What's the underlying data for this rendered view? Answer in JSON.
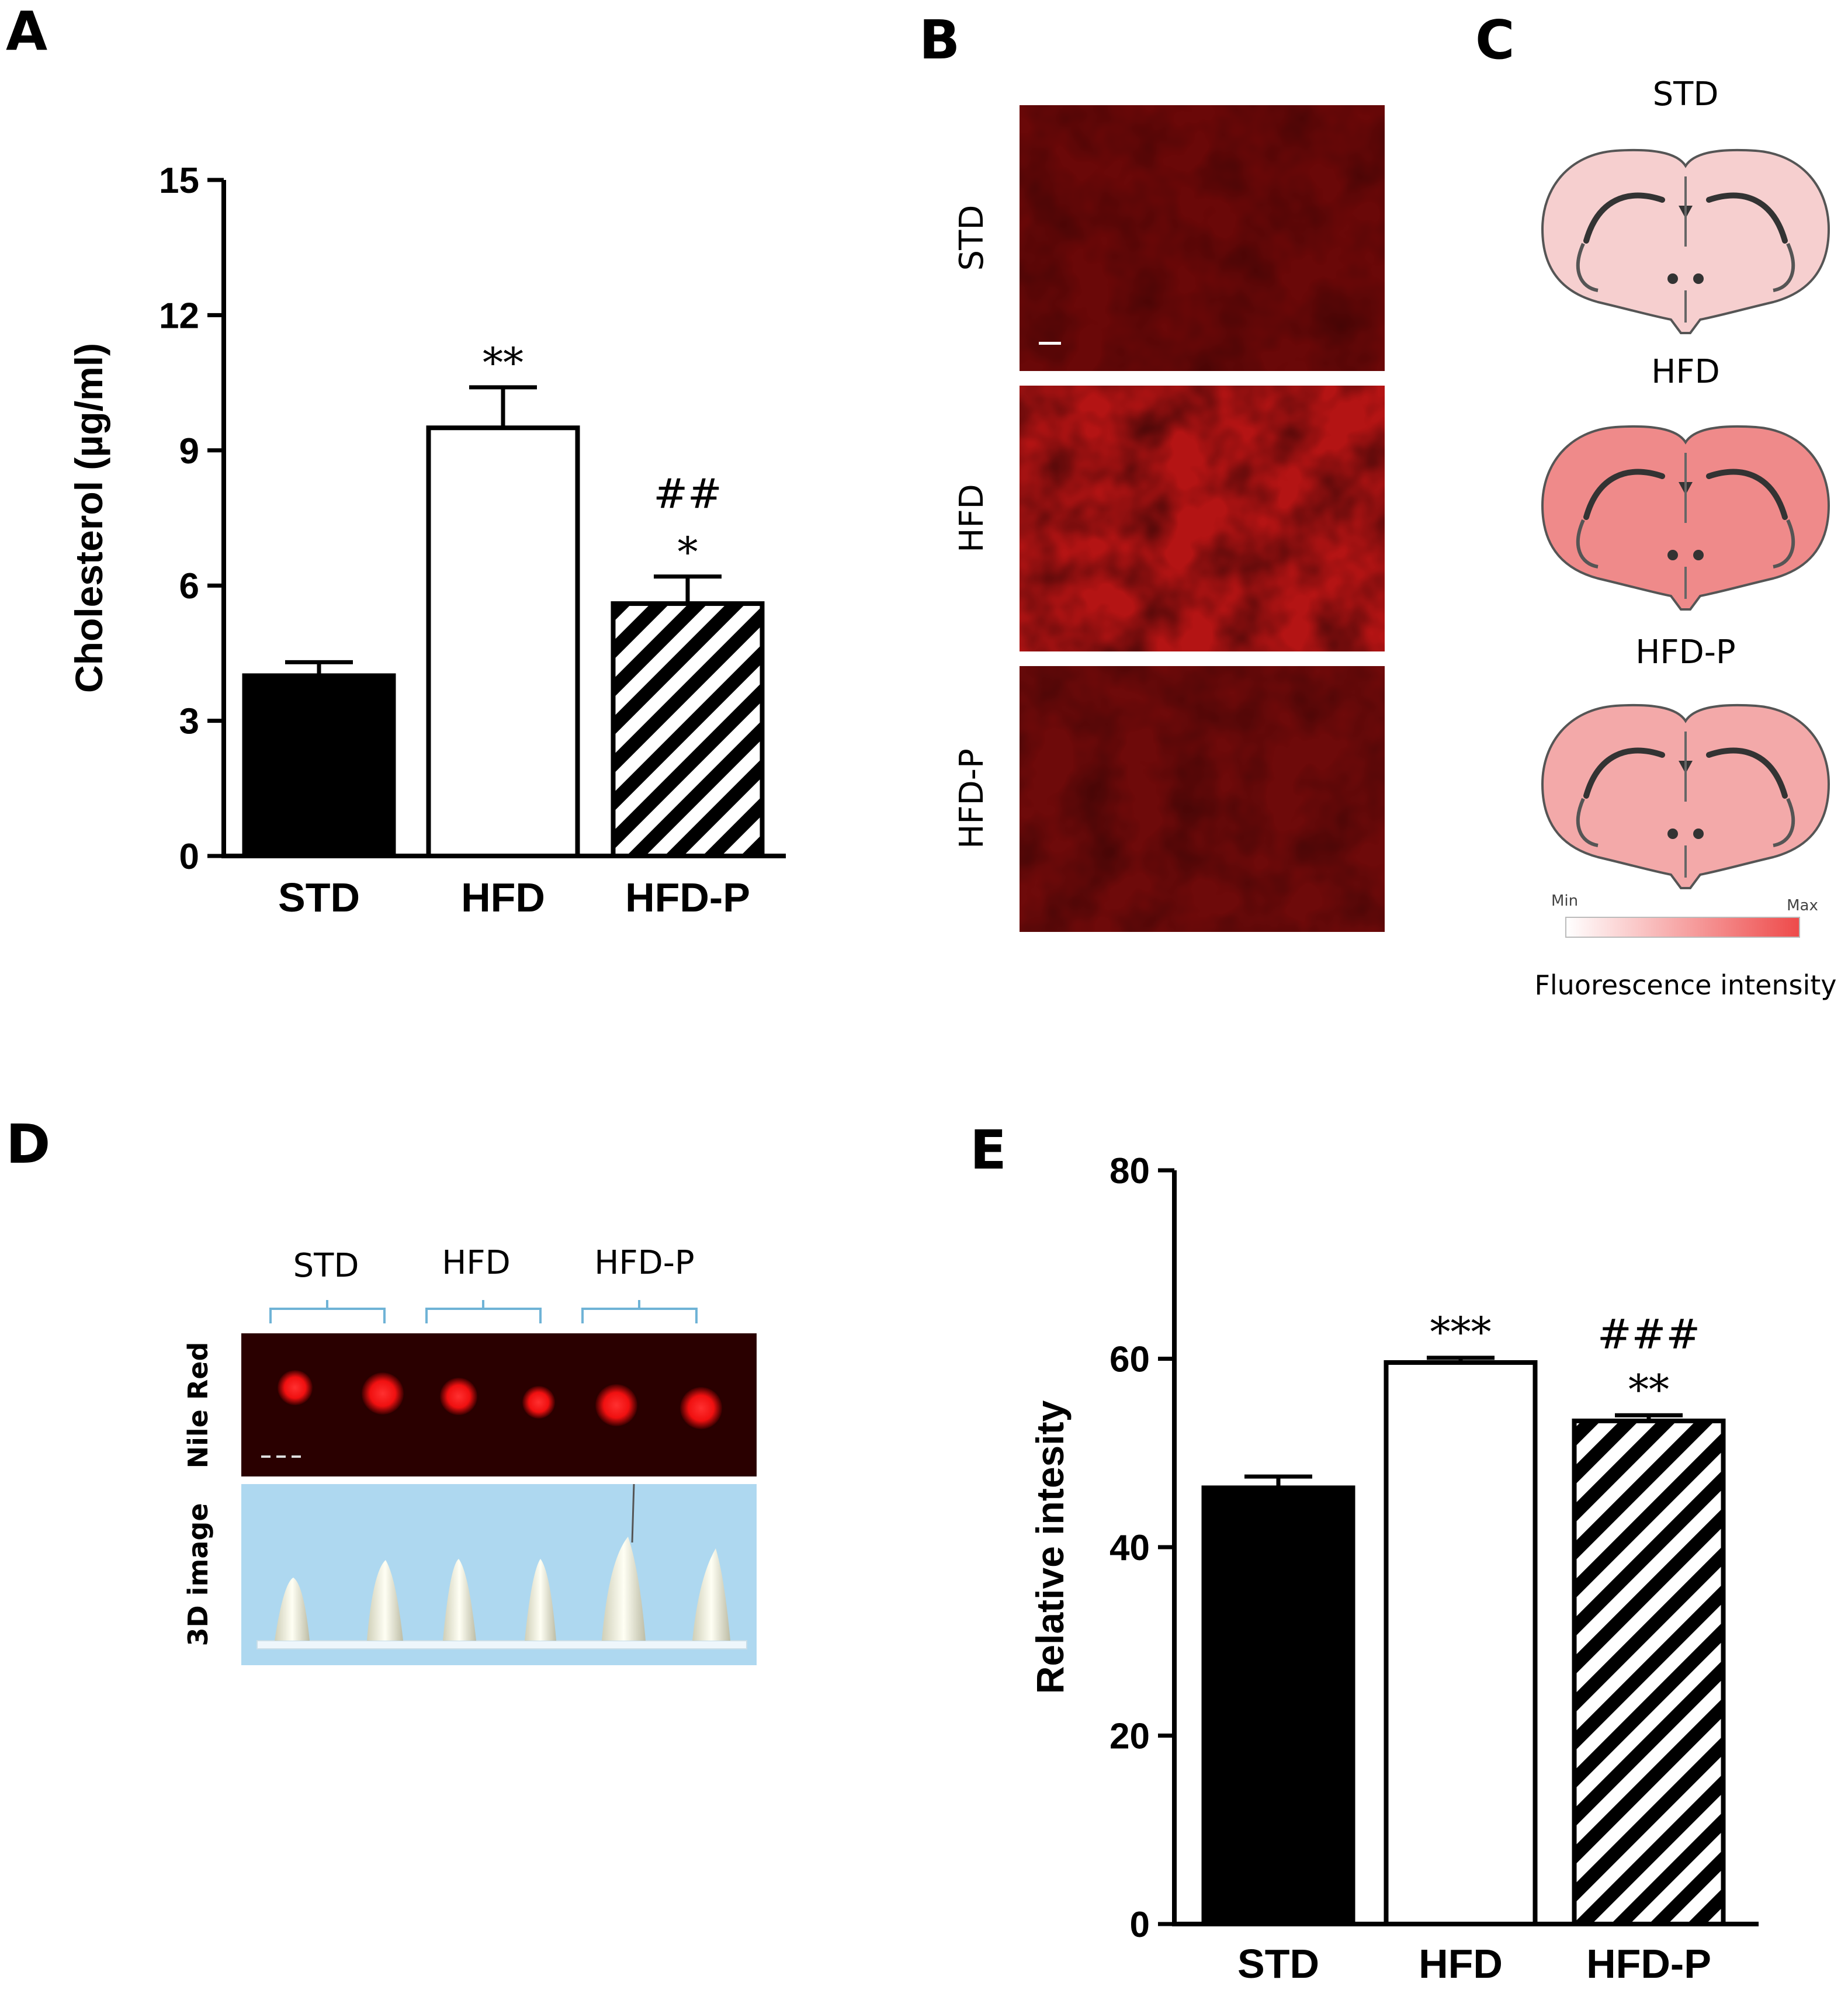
{
  "panel_letters": [
    "A",
    "B",
    "C",
    "D",
    "E"
  ],
  "colors": {
    "std_bar": "#000000",
    "hfd_bar": "#ffffff",
    "stain_red": "#e01010",
    "gel_blue": "#aed8f0",
    "brain_fill_std": "#f6cfcf",
    "brain_fill_hfd": "#ef8a8a",
    "brain_fill_hfdp": "#f3a9a9"
  },
  "chart_data": [
    {
      "id": "A",
      "type": "bar",
      "title": "",
      "xlabel": "",
      "ylabel": "Cholesterol (µg/ml)",
      "ylim": [
        0,
        15
      ],
      "yticks": [
        0,
        3,
        6,
        9,
        12,
        15
      ],
      "ytick_labels": [
        "0",
        "3",
        "6",
        "9",
        "12",
        "15"
      ],
      "categories": [
        "STD",
        "HFD",
        "HFD-P"
      ],
      "values": [
        4.0,
        9.5,
        5.6
      ],
      "errors": [
        0.3,
        0.9,
        0.6
      ],
      "fills": [
        "solid-black",
        "white",
        "diagonal-hatch"
      ],
      "annotations": [
        {
          "category": "HFD",
          "lines": [
            "**"
          ]
        },
        {
          "category": "HFD-P",
          "lines": [
            "##",
            "*"
          ]
        }
      ]
    },
    {
      "id": "E",
      "type": "bar",
      "title": "",
      "xlabel": "",
      "ylabel": "Relative  intesity",
      "ylim": [
        0,
        80
      ],
      "yticks": [
        0,
        20,
        40,
        60,
        80
      ],
      "ytick_labels": [
        "0",
        "20",
        "40",
        "60",
        "80"
      ],
      "categories": [
        "STD",
        "HFD",
        "HFD-P"
      ],
      "values": [
        46.3,
        59.6,
        53.4
      ],
      "errors": [
        1.2,
        0.5,
        0.6
      ],
      "fills": [
        "solid-black",
        "white",
        "diagonal-hatch"
      ],
      "annotations": [
        {
          "category": "HFD",
          "lines": [
            "***"
          ]
        },
        {
          "category": "HFD-P",
          "lines": [
            "###",
            "**"
          ]
        }
      ]
    }
  ],
  "panel_b": {
    "rows": [
      "STD",
      "HFD",
      "HFD-P"
    ]
  },
  "panel_c": {
    "labels": [
      "STD",
      "HFD",
      "HFD-P"
    ],
    "scale_min": "Min",
    "scale_max": "Max",
    "scale_title": "Fluorescence intensity"
  },
  "panel_d": {
    "groups": [
      "STD",
      "HFD",
      "HFD-P"
    ],
    "row_labels": [
      "Nile Red",
      "3D image"
    ]
  }
}
